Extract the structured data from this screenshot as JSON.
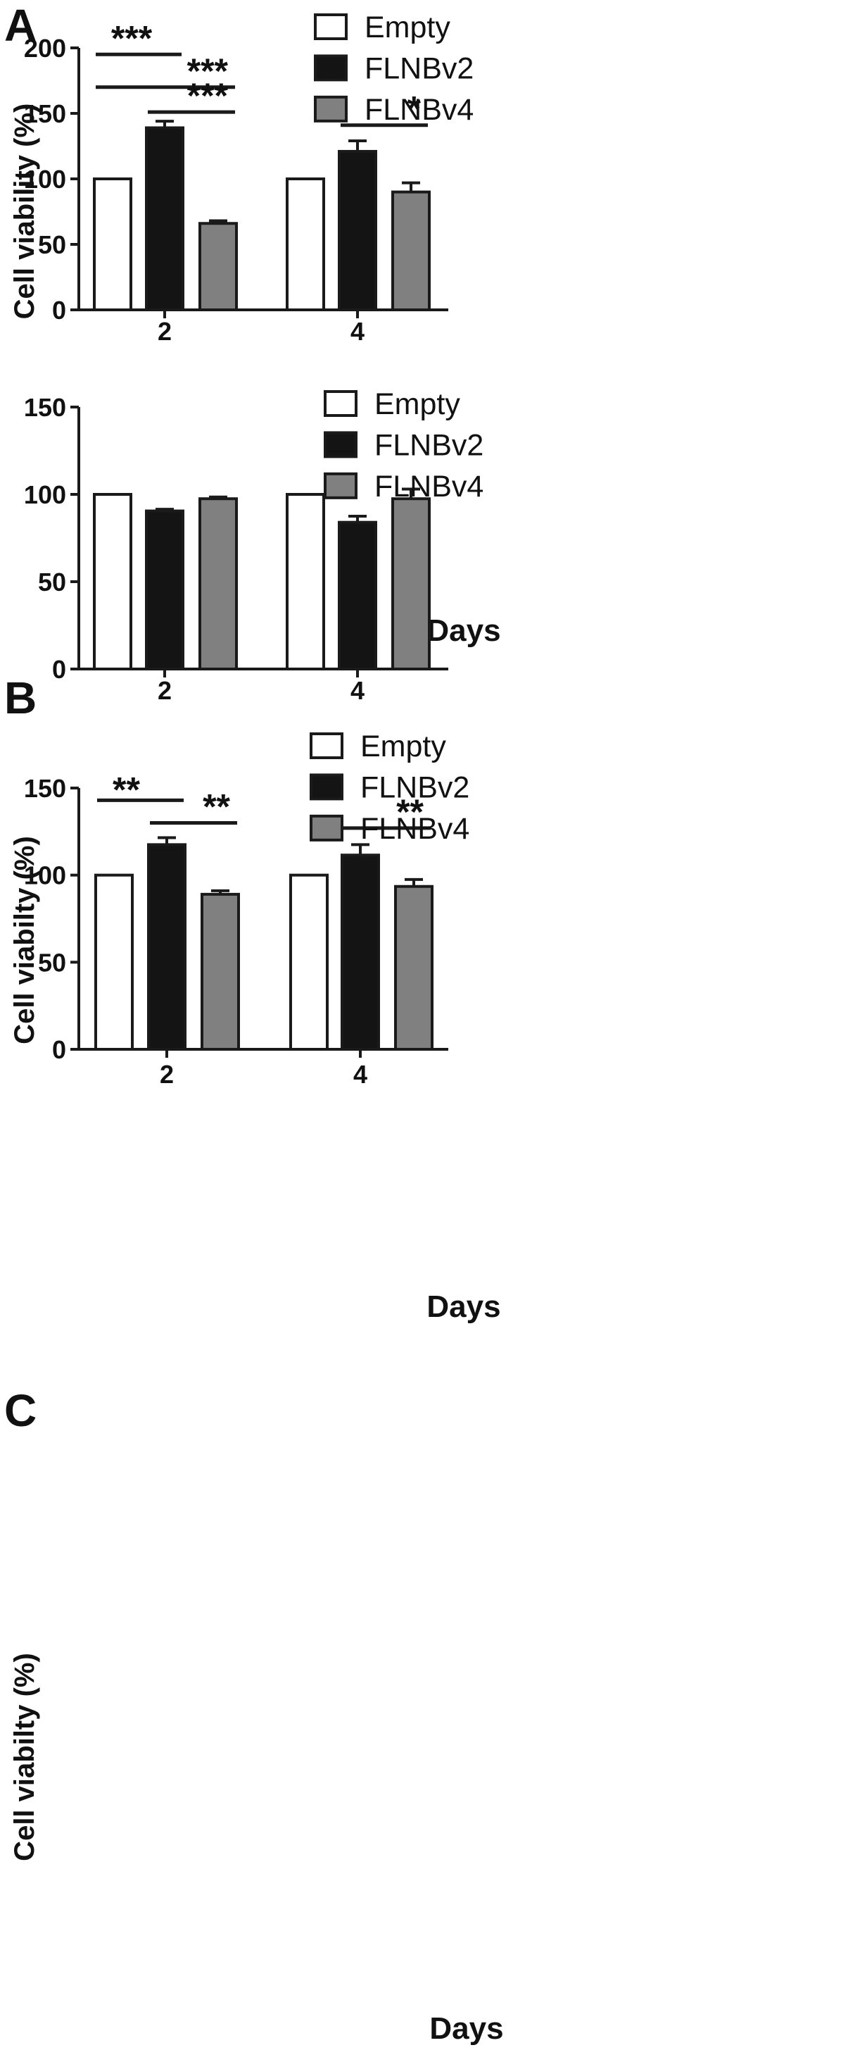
{
  "chart_data": [
    {
      "panel": "A",
      "type": "bar",
      "categories": [
        "2",
        "4"
      ],
      "series": [
        {
          "name": "Empty",
          "values": [
            100,
            100
          ],
          "errors": [
            0,
            0
          ],
          "color": "#ffffff"
        },
        {
          "name": "FLNBv2",
          "values": [
            139,
            121
          ],
          "errors": [
            5,
            8
          ],
          "color": "#141414"
        },
        {
          "name": "FLNBv4",
          "values": [
            66,
            90
          ],
          "errors": [
            2,
            7
          ],
          "color": "#808080"
        }
      ],
      "xlabel": "Days",
      "ylabel": "Cell viability (%)",
      "ylim": [
        0,
        200
      ],
      "yticks": [
        0,
        50,
        100,
        150,
        200
      ],
      "legend": "top-right",
      "significance": [
        {
          "label": "***",
          "from": [
            0,
            0
          ],
          "to": [
            0,
            1
          ],
          "y": 195
        },
        {
          "label": "***",
          "from": [
            0,
            0
          ],
          "to": [
            0,
            2
          ],
          "y": 170
        },
        {
          "label": "***",
          "from": [
            0,
            1
          ],
          "to": [
            0,
            2
          ],
          "y": 151
        },
        {
          "label": "*",
          "from": [
            1,
            1
          ],
          "to": [
            1,
            2
          ],
          "y": 141
        }
      ]
    },
    {
      "panel": "B",
      "type": "bar",
      "categories": [
        "2",
        "4"
      ],
      "series": [
        {
          "name": "Empty",
          "values": [
            100,
            100
          ],
          "errors": [
            0,
            0
          ],
          "color": "#ffffff"
        },
        {
          "name": "FLNBv2",
          "values": [
            90.5,
            84
          ],
          "errors": [
            1,
            3.5
          ],
          "color": "#141414"
        },
        {
          "name": "FLNBv4",
          "values": [
            97.5,
            97.5
          ],
          "errors": [
            1,
            5.5
          ],
          "color": "#808080"
        }
      ],
      "xlabel": "Days",
      "ylabel": "Cell viabilty (%)",
      "ylim": [
        0,
        150
      ],
      "yticks": [
        0,
        50,
        100,
        150
      ],
      "legend": "top-right",
      "significance": []
    },
    {
      "panel": "C",
      "type": "bar",
      "categories": [
        "2",
        "4"
      ],
      "series": [
        {
          "name": "Empty",
          "values": [
            100,
            100
          ],
          "errors": [
            0,
            0
          ],
          "color": "#ffffff"
        },
        {
          "name": "FLNBv2",
          "values": [
            117.5,
            111.5
          ],
          "errors": [
            4,
            6
          ],
          "color": "#141414"
        },
        {
          "name": "FLNBv4",
          "values": [
            89,
            93.5
          ],
          "errors": [
            2,
            4
          ],
          "color": "#808080"
        }
      ],
      "xlabel": "Days",
      "ylabel": "Cell viabilty (%)",
      "ylim": [
        0,
        150
      ],
      "yticks": [
        0,
        50,
        100,
        150
      ],
      "legend": "top-right",
      "significance": [
        {
          "label": "**",
          "from": [
            0,
            0
          ],
          "to": [
            0,
            1
          ],
          "y": 143
        },
        {
          "label": "**",
          "from": [
            0,
            1
          ],
          "to": [
            0,
            2
          ],
          "y": 130
        },
        {
          "label": "**",
          "from": [
            1,
            1
          ],
          "to": [
            1,
            2
          ],
          "y": 127
        }
      ]
    }
  ]
}
